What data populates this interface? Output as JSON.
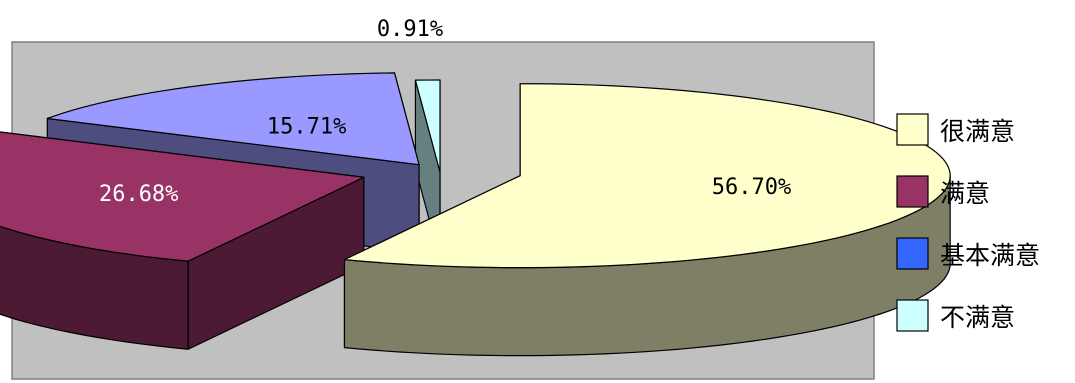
{
  "chart_data": {
    "type": "pie",
    "style": "3d-exploded",
    "title": "",
    "categories": [
      "很满意",
      "满意",
      "基本满意",
      "不满意"
    ],
    "values": [
      56.7,
      26.68,
      15.71,
      0.91
    ],
    "data_labels": [
      "56.70%",
      "26.68%",
      "15.71%",
      "0.91%"
    ],
    "colors": {
      "top": [
        "#ffffcc",
        "#993366",
        "#9999ff",
        "#ccffff"
      ],
      "side": [
        "#7f7f66",
        "#4d1a33",
        "#4d4d80",
        "#668080"
      ],
      "legend": [
        "#ffffcc",
        "#993366",
        "#3366ff",
        "#ccffff"
      ]
    },
    "label_colors": [
      "#000000",
      "#ffffff",
      "#000000",
      "#000000"
    ],
    "legend_position": "right",
    "plot_background": "#c0c0c0"
  }
}
